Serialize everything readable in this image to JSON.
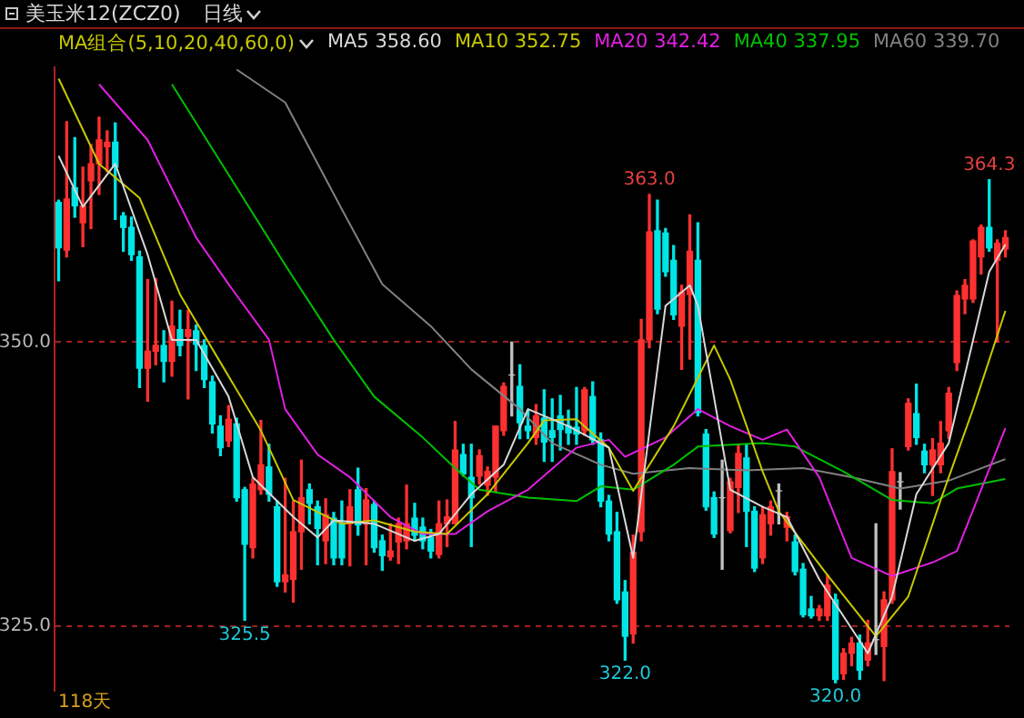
{
  "chart_data": {
    "type": "candlestick",
    "title": "美玉米12(ZCZ0)",
    "subtitle": "日线",
    "legend_title": "MA组合(5,10,20,40,60,0)",
    "legend": "top left",
    "grid": "y",
    "tick_labels": "y",
    "categories": [
      null,
      null,
      null,
      null,
      null,
      null,
      null,
      null,
      null,
      null,
      null,
      null,
      null,
      null,
      null,
      null,
      null,
      null,
      null,
      null,
      null,
      null,
      null,
      null,
      null,
      null,
      null,
      null,
      null,
      null,
      null,
      null,
      null,
      null,
      null,
      null,
      null,
      null,
      null,
      null,
      null,
      null,
      null,
      null,
      null,
      null,
      null,
      null,
      null,
      null,
      null,
      null,
      null,
      null,
      null,
      null,
      null,
      null,
      null,
      null,
      null,
      null,
      null,
      null,
      null,
      null,
      null,
      null,
      null,
      null,
      null,
      null,
      null,
      null,
      null,
      null,
      null,
      null,
      null,
      null,
      null,
      null,
      null,
      null,
      null,
      null,
      null,
      null,
      null,
      null,
      null,
      null,
      null,
      null,
      null,
      null,
      null,
      null,
      null,
      null,
      null,
      null,
      null,
      null,
      null,
      null,
      null,
      null,
      null,
      null,
      null,
      null,
      null,
      null,
      null,
      null,
      null,
      null
    ],
    "ylim": [
      319.3,
      374.2
    ],
    "yticks": [
      {
        "value": 325,
        "label": "325.0"
      },
      {
        "value": 350,
        "label": "350.0"
      }
    ],
    "ohlc": [
      [
        362.3,
        362.5,
        355.4,
        358.3
      ],
      [
        358.1,
        369.4,
        357.5,
        362.6
      ],
      [
        363.6,
        368.0,
        361.0,
        362.0
      ],
      [
        360.5,
        365.4,
        358.4,
        362.0
      ],
      [
        364.2,
        367.4,
        360.0,
        365.7
      ],
      [
        365.7,
        369.8,
        363.0,
        367.8
      ],
      [
        367.2,
        368.6,
        365.0,
        367.6
      ],
      [
        367.6,
        369.3,
        360.8,
        365.4
      ],
      [
        361.1,
        361.4,
        358.0,
        360.1
      ],
      [
        360.1,
        361.0,
        357.2,
        357.7
      ],
      [
        357.5,
        358.0,
        346.0,
        347.7
      ],
      [
        347.7,
        355.5,
        344.8,
        349.2
      ],
      [
        349.2,
        355.6,
        348.0,
        349.7
      ],
      [
        349.7,
        351.0,
        346.5,
        348.3
      ],
      [
        348.3,
        353.6,
        347.0,
        351.4
      ],
      [
        351.1,
        352.8,
        348.8,
        349.7
      ],
      [
        350.5,
        352.8,
        345.0,
        351.1
      ],
      [
        351.0,
        351.5,
        347.5,
        349.8
      ],
      [
        349.7,
        350.2,
        346.0,
        346.7
      ],
      [
        346.5,
        347.0,
        342.0,
        342.8
      ],
      [
        342.6,
        343.5,
        340.0,
        340.7
      ],
      [
        341.3,
        344.4,
        340.8,
        343.2
      ],
      [
        342.8,
        343.3,
        336.0,
        336.3
      ],
      [
        337.0,
        337.2,
        325.5,
        332.2
      ],
      [
        331.9,
        338.0,
        331.0,
        337.5
      ],
      [
        337.0,
        343.1,
        336.6,
        339.2
      ],
      [
        339.0,
        341.0,
        336.0,
        336.6
      ],
      [
        335.5,
        336.0,
        328.5,
        328.9
      ],
      [
        328.9,
        338.0,
        328.0,
        329.5
      ],
      [
        329.1,
        336.0,
        327.1,
        333.3
      ],
      [
        333.3,
        339.6,
        330.0,
        336.3
      ],
      [
        337.0,
        337.5,
        334.0,
        335.8
      ],
      [
        335.5,
        336.0,
        330.4,
        333.6
      ],
      [
        332.5,
        336.2,
        330.5,
        334.8
      ],
      [
        334.5,
        335.0,
        330.4,
        331.0
      ],
      [
        334.0,
        336.0,
        330.4,
        331.0
      ],
      [
        334.0,
        337.0,
        330.3,
        335.5
      ],
      [
        337.0,
        338.9,
        333.0,
        333.9
      ],
      [
        334.0,
        337.1,
        330.4,
        336.1
      ],
      [
        335.7,
        336.0,
        331.5,
        331.9
      ],
      [
        332.5,
        333.0,
        329.9,
        331.2
      ],
      [
        331.1,
        334.0,
        330.8,
        331.6
      ],
      [
        332.4,
        334.5,
        330.5,
        334.0
      ],
      [
        332.5,
        337.4,
        331.8,
        334.0
      ],
      [
        334.5,
        335.8,
        332.5,
        333.0
      ],
      [
        333.7,
        334.5,
        331.8,
        332.5
      ],
      [
        332.8,
        333.5,
        331.0,
        331.6
      ],
      [
        331.3,
        336.0,
        331.0,
        334.0
      ],
      [
        334.0,
        336.1,
        332.0,
        334.6
      ],
      [
        334.0,
        343.0,
        334.0,
        340.5
      ],
      [
        340.1,
        341.0,
        338.2,
        338.4
      ],
      [
        338.1,
        341.0,
        332.0,
        336.3
      ],
      [
        338.2,
        340.5,
        337.5,
        340.0
      ],
      [
        337.4,
        339.0,
        336.5,
        338.6
      ],
      [
        338.1,
        342.6,
        336.8,
        342.6
      ],
      [
        342.2,
        346.4,
        341.8,
        346.1
      ],
      [
        347.1,
        350.0,
        343.5,
        347.1
      ],
      [
        346.1,
        348.0,
        341.5,
        342.9
      ],
      [
        342.6,
        344.0,
        341.5,
        342.2
      ],
      [
        341.6,
        344.5,
        341.0,
        343.5
      ],
      [
        343.3,
        345.8,
        339.5,
        341.2
      ],
      [
        342.2,
        345.0,
        339.5,
        341.6
      ],
      [
        343.5,
        345.3,
        340.5,
        342.3
      ],
      [
        342.6,
        344.0,
        341.0,
        342.0
      ],
      [
        342.5,
        346.0,
        341.0,
        341.9
      ],
      [
        342.2,
        346.0,
        341.8,
        345.8
      ],
      [
        345.2,
        346.5,
        341.0,
        341.4
      ],
      [
        341.4,
        342.0,
        335.5,
        336.0
      ],
      [
        336.0,
        336.5,
        332.5,
        333.1
      ],
      [
        333.3,
        335.0,
        327.0,
        327.3
      ],
      [
        328.0,
        329.0,
        322.0,
        324.1
      ],
      [
        324.3,
        333.0,
        323.5,
        331.5
      ],
      [
        333.3,
        352.0,
        332.5,
        350.2
      ],
      [
        350.2,
        363.0,
        349.5,
        359.7
      ],
      [
        359.8,
        362.5,
        352.5,
        352.9
      ],
      [
        359.6,
        360.0,
        355.8,
        356.2
      ],
      [
        357.2,
        358.5,
        352.0,
        352.4
      ],
      [
        351.4,
        355.0,
        347.6,
        354.4
      ],
      [
        354.2,
        361.2,
        348.5,
        358.0
      ],
      [
        357.2,
        360.5,
        343.5,
        343.8
      ],
      [
        341.9,
        342.3,
        335.2,
        335.5
      ],
      [
        336.3,
        336.8,
        332.8,
        333.1
      ],
      [
        336.3,
        339.6,
        330.0,
        336.3
      ],
      [
        333.4,
        338.0,
        333.2,
        337.7
      ],
      [
        337.2,
        341.0,
        335.0,
        340.2
      ],
      [
        339.8,
        341.0,
        332.0,
        335.1
      ],
      [
        335.1,
        335.5,
        329.8,
        330.1
      ],
      [
        331.0,
        335.5,
        330.5,
        334.8
      ],
      [
        334.0,
        336.0,
        333.0,
        335.5
      ],
      [
        336.9,
        337.5,
        334.0,
        336.9
      ],
      [
        333.7,
        335.0,
        332.5,
        334.6
      ],
      [
        332.4,
        333.0,
        329.5,
        329.8
      ],
      [
        330.0,
        330.5,
        325.8,
        326.0
      ],
      [
        326.5,
        327.6,
        325.7,
        325.9
      ],
      [
        325.9,
        326.8,
        325.5,
        326.5
      ],
      [
        325.9,
        329.5,
        325.5,
        328.6
      ],
      [
        327.3,
        327.8,
        320.0,
        320.3
      ],
      [
        320.8,
        323.0,
        320.3,
        322.6
      ],
      [
        322.6,
        324.0,
        321.5,
        323.5
      ],
      [
        323.5,
        324.2,
        320.3,
        321.1
      ],
      [
        322.0,
        325.5,
        321.5,
        323.5
      ],
      [
        323.8,
        334.0,
        322.5,
        323.8
      ],
      [
        323.2,
        328.0,
        320.2,
        327.3
      ],
      [
        327.3,
        340.6,
        327.0,
        338.6
      ],
      [
        337.7,
        338.5,
        335.3,
        337.7
      ],
      [
        340.8,
        345.0,
        340.5,
        344.6
      ],
      [
        343.7,
        346.3,
        341.0,
        341.6
      ],
      [
        340.4,
        341.0,
        338.5,
        339.2
      ],
      [
        339.2,
        341.5,
        336.5,
        340.5
      ],
      [
        339.2,
        343.0,
        338.5,
        341.1
      ],
      [
        342.2,
        346.0,
        341.5,
        345.5
      ],
      [
        348.2,
        354.5,
        347.5,
        354.1
      ],
      [
        353.8,
        355.5,
        352.5,
        355.0
      ],
      [
        353.8,
        359.0,
        353.5,
        358.9
      ],
      [
        357.5,
        360.3,
        356.0,
        360.1
      ],
      [
        360.1,
        364.3,
        358.0,
        358.3
      ],
      [
        357.2,
        359.0,
        350.0,
        358.7
      ],
      [
        358.2,
        359.8,
        357.5,
        359.2
      ]
    ],
    "series": [
      {
        "type": "line",
        "name": "MA5 358.60",
        "color": "#d8d8d8",
        "values": [
          366.4,
          null,
          null,
          361.9,
          null,
          null,
          null,
          365.7,
          null,
          null,
          null,
          357.7,
          null,
          null,
          350.2,
          null,
          null,
          350.2,
          null,
          null,
          null,
          345.2,
          null,
          null,
          338.1,
          null,
          null,
          null,
          null,
          334.6,
          null,
          null,
          332.8,
          null,
          334.3,
          null,
          null,
          null,
          null,
          334.0,
          null,
          null,
          null,
          null,
          332.5,
          null,
          null,
          333.1,
          null,
          null,
          null,
          336.6,
          null,
          null,
          null,
          339.2,
          null,
          null,
          344.1,
          null,
          null,
          null,
          null,
          342.6,
          null,
          null,
          null,
          null,
          340.7,
          null,
          null,
          331.0,
          null,
          null,
          null,
          353.2,
          null,
          null,
          355.0,
          353.2,
          null,
          null,
          null,
          337.0,
          null,
          null,
          null,
          335.5,
          null,
          null,
          334.6,
          null,
          null,
          null,
          329.1,
          null,
          null,
          null,
          null,
          null,
          322.6,
          null,
          null,
          327.6,
          null,
          null,
          336.6,
          null,
          null,
          null,
          341.1,
          null,
          null,
          null,
          null,
          356.2,
          null,
          358.6
        ]
      },
      {
        "type": "line",
        "name": "MA10 352.75",
        "color": "#c8c800",
        "values": [
          373.2,
          null,
          null,
          null,
          null,
          365.7,
          null,
          null,
          null,
          null,
          362.7,
          null,
          null,
          null,
          null,
          354.2,
          null,
          null,
          null,
          null,
          348.2,
          null,
          null,
          null,
          null,
          342.2,
          null,
          null,
          null,
          336.1,
          null,
          null,
          null,
          null,
          null,
          334.0,
          null,
          null,
          null,
          334.3,
          null,
          null,
          null,
          null,
          333.3,
          null,
          null,
          null,
          333.1,
          null,
          null,
          null,
          null,
          336.6,
          null,
          null,
          null,
          null,
          341.1,
          null,
          343.1,
          null,
          null,
          null,
          343.2,
          null,
          null,
          null,
          340.7,
          null,
          null,
          336.9,
          null,
          null,
          null,
          null,
          342.6,
          null,
          null,
          null,
          null,
          349.7,
          null,
          346.7,
          null,
          null,
          null,
          338.6,
          null,
          335.1,
          null,
          null,
          null,
          null,
          null,
          329.5,
          null,
          null,
          null,
          null,
          null,
          324.1,
          null,
          null,
          null,
          327.6,
          null,
          null,
          null,
          336.1,
          null,
          null,
          null,
          344.1,
          null,
          null,
          null,
          352.75
        ]
      },
      {
        "type": "line",
        "name": "MA20 342.42",
        "color": "#e020e0",
        "values": [
          null,
          null,
          null,
          null,
          null,
          372.7,
          null,
          null,
          null,
          null,
          null,
          367.8,
          null,
          null,
          null,
          null,
          null,
          359.2,
          null,
          null,
          null,
          355.1,
          null,
          null,
          null,
          null,
          350.2,
          null,
          344.1,
          null,
          null,
          null,
          340.1,
          null,
          null,
          null,
          338.1,
          null,
          null,
          null,
          null,
          334.6,
          null,
          null,
          null,
          333.1,
          null,
          null,
          null,
          333.1,
          null,
          null,
          null,
          335.1,
          null,
          null,
          null,
          null,
          337.0,
          null,
          null,
          null,
          null,
          null,
          340.7,
          null,
          null,
          null,
          341.4,
          null,
          339.9,
          null,
          null,
          null,
          null,
          341.6,
          null,
          null,
          null,
          344.1,
          null,
          null,
          null,
          342.6,
          null,
          null,
          null,
          341.4,
          null,
          null,
          342.3,
          null,
          null,
          null,
          338.1,
          null,
          null,
          null,
          331.0,
          null,
          null,
          null,
          null,
          329.4,
          null,
          null,
          null,
          null,
          330.6,
          null,
          null,
          331.6,
          null,
          null,
          null,
          null,
          null,
          342.42
        ]
      },
      {
        "type": "line",
        "name": "MA40 337.95",
        "color": "#00c000",
        "values": [
          null,
          null,
          null,
          null,
          null,
          null,
          null,
          null,
          null,
          null,
          null,
          null,
          null,
          null,
          372.7,
          null,
          null,
          null,
          null,
          null,
          null,
          null,
          null,
          null,
          null,
          null,
          null,
          null,
          356.8,
          null,
          null,
          null,
          null,
          null,
          350.2,
          null,
          null,
          null,
          null,
          345.2,
          null,
          null,
          null,
          null,
          null,
          341.6,
          null,
          null,
          null,
          338.9,
          null,
          null,
          337.0,
          null,
          null,
          null,
          null,
          null,
          336.3,
          null,
          null,
          null,
          null,
          null,
          336.0,
          null,
          null,
          337.3,
          null,
          null,
          null,
          337.0,
          null,
          null,
          null,
          null,
          339.2,
          null,
          null,
          340.8,
          null,
          null,
          null,
          null,
          null,
          null,
          null,
          341.1,
          null,
          null,
          null,
          340.8,
          null,
          null,
          null,
          null,
          null,
          338.6,
          null,
          null,
          null,
          null,
          null,
          336.1,
          null,
          null,
          null,
          null,
          335.8,
          null,
          null,
          337.1,
          null,
          null,
          null,
          null,
          null,
          337.95
        ]
      },
      {
        "type": "line",
        "name": "MA60 339.70",
        "color": "#808080",
        "values": [
          null,
          null,
          null,
          null,
          null,
          null,
          null,
          null,
          null,
          null,
          null,
          null,
          null,
          null,
          null,
          null,
          null,
          null,
          null,
          null,
          null,
          null,
          374.0,
          null,
          null,
          null,
          null,
          null,
          371.1,
          null,
          null,
          null,
          null,
          null,
          null,
          361.7,
          null,
          null,
          null,
          null,
          355.1,
          null,
          null,
          null,
          null,
          null,
          351.4,
          null,
          null,
          null,
          null,
          347.6,
          null,
          null,
          null,
          null,
          null,
          344.1,
          null,
          null,
          null,
          341.1,
          null,
          null,
          null,
          null,
          null,
          339.2,
          null,
          null,
          null,
          338.4,
          null,
          null,
          null,
          null,
          null,
          null,
          338.9,
          null,
          null,
          null,
          null,
          null,
          null,
          338.7,
          null,
          null,
          null,
          null,
          null,
          null,
          338.9,
          null,
          null,
          null,
          null,
          null,
          338.1,
          null,
          null,
          null,
          null,
          null,
          337.1,
          null,
          null,
          null,
          null,
          null,
          337.8,
          null,
          null,
          null,
          null,
          null,
          null,
          339.7
        ]
      }
    ],
    "annotations": [
      {
        "text": "363.0",
        "y": 363.0
      },
      {
        "text": "364.3",
        "y": 364.3
      },
      {
        "text": "325.5",
        "y": 325.5
      },
      {
        "text": "322.0",
        "y": 322.0
      },
      {
        "text": "320.0",
        "y": 320.0
      },
      "118天"
    ]
  }
}
